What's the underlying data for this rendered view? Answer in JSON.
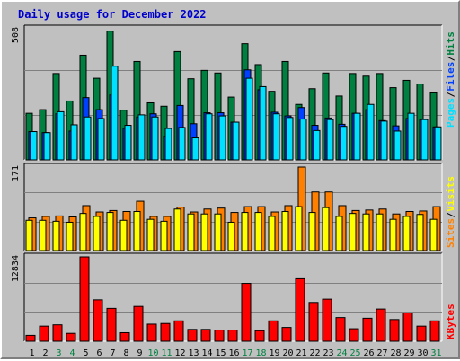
{
  "title": "Daily usage for December 2022",
  "colors": {
    "hits": "#008040",
    "files": "#0040ff",
    "pages": "#00e0ff",
    "visits": "#ff8000",
    "sites": "#ffff00",
    "kbytes": "#ff0000",
    "weekend_label": "#008040",
    "weekday_label": "#000000",
    "panel_bg": "#c0c0c0",
    "title": "#0000cc"
  },
  "legend": {
    "top": {
      "hits": "Hits",
      "files": "Files",
      "pages": "Pages",
      "sep1": "/",
      "sep2": "/"
    },
    "middle": {
      "visits": "Visits",
      "sites": "Sites",
      "sep": "/"
    },
    "bottom": {
      "kbytes": "KBytes"
    }
  },
  "chart_data": [
    {
      "type": "bar",
      "title": "Daily usage for December 2022",
      "panel": "hits-files-pages",
      "ylabel": "508",
      "ylim": [
        0,
        508
      ],
      "categories": [
        "1",
        "2",
        "3",
        "4",
        "5",
        "6",
        "7",
        "8",
        "9",
        "10",
        "11",
        "12",
        "13",
        "14",
        "15",
        "16",
        "17",
        "18",
        "19",
        "20",
        "21",
        "22",
        "23",
        "24",
        "25",
        "26",
        "27",
        "28",
        "29",
        "30",
        "31"
      ],
      "weekend_days": [
        "3",
        "4",
        "10",
        "11",
        "17",
        "18",
        "24",
        "25",
        "31"
      ],
      "series": [
        {
          "name": "Hits",
          "values": [
            178,
            192,
            330,
            225,
            400,
            312,
            492,
            190,
            376,
            218,
            205,
            414,
            310,
            342,
            332,
            240,
            444,
            364,
            262,
            376,
            212,
            272,
            332,
            244,
            330,
            320,
            330,
            276,
            304,
            290,
            256
          ]
        },
        {
          "name": "Files",
          "values": [
            108,
            104,
            176,
            110,
            238,
            192,
            248,
            120,
            164,
            176,
            88,
            208,
            138,
            180,
            180,
            144,
            344,
            268,
            182,
            168,
            200,
            132,
            160,
            136,
            178,
            192,
            150,
            130,
            158,
            152,
            126
          ]
        },
        {
          "name": "Pages",
          "values": [
            108,
            104,
            184,
            134,
            164,
            158,
            358,
            132,
            172,
            164,
            120,
            124,
            84,
            176,
            168,
            144,
            312,
            280,
            176,
            162,
            156,
            112,
            154,
            128,
            178,
            212,
            148,
            110,
            178,
            154,
            126
          ]
        }
      ]
    },
    {
      "type": "bar",
      "panel": "visits-sites",
      "ylabel": "171",
      "ylim": [
        0,
        171
      ],
      "categories": [
        "1",
        "2",
        "3",
        "4",
        "5",
        "6",
        "7",
        "8",
        "9",
        "10",
        "11",
        "12",
        "13",
        "14",
        "15",
        "16",
        "17",
        "18",
        "19",
        "20",
        "21",
        "22",
        "23",
        "24",
        "25",
        "26",
        "27",
        "28",
        "29",
        "30",
        "31"
      ],
      "series": [
        {
          "name": "Visits",
          "values": [
            67,
            70,
            71,
            69,
            92,
            79,
            82,
            80,
            101,
            70,
            70,
            89,
            79,
            85,
            87,
            78,
            90,
            90,
            79,
            92,
            171,
            120,
            120,
            92,
            82,
            83,
            85,
            75,
            80,
            81,
            90
          ]
        },
        {
          "name": "Sites",
          "values": [
            62,
            62,
            60,
            58,
            76,
            70,
            78,
            62,
            80,
            64,
            60,
            85,
            75,
            75,
            75,
            58,
            78,
            78,
            70,
            80,
            90,
            78,
            88,
            70,
            76,
            75,
            75,
            64,
            70,
            74,
            64
          ]
        }
      ]
    },
    {
      "type": "bar",
      "panel": "kbytes",
      "ylabel": "12834",
      "ylim": [
        0,
        12834
      ],
      "categories": [
        "1",
        "2",
        "3",
        "4",
        "5",
        "6",
        "7",
        "8",
        "9",
        "10",
        "11",
        "12",
        "13",
        "14",
        "15",
        "16",
        "17",
        "18",
        "19",
        "20",
        "21",
        "22",
        "23",
        "24",
        "25",
        "26",
        "27",
        "28",
        "29",
        "30",
        "31"
      ],
      "series": [
        {
          "name": "KBytes",
          "values": [
            900,
            2300,
            2500,
            1200,
            12834,
            6300,
            5000,
            1300,
            5300,
            2600,
            2700,
            3100,
            1800,
            1800,
            1700,
            1700,
            8800,
            1600,
            3100,
            2100,
            9500,
            5900,
            6400,
            3600,
            1900,
            3500,
            4900,
            3300,
            4300,
            2300,
            3100
          ]
        }
      ]
    }
  ]
}
